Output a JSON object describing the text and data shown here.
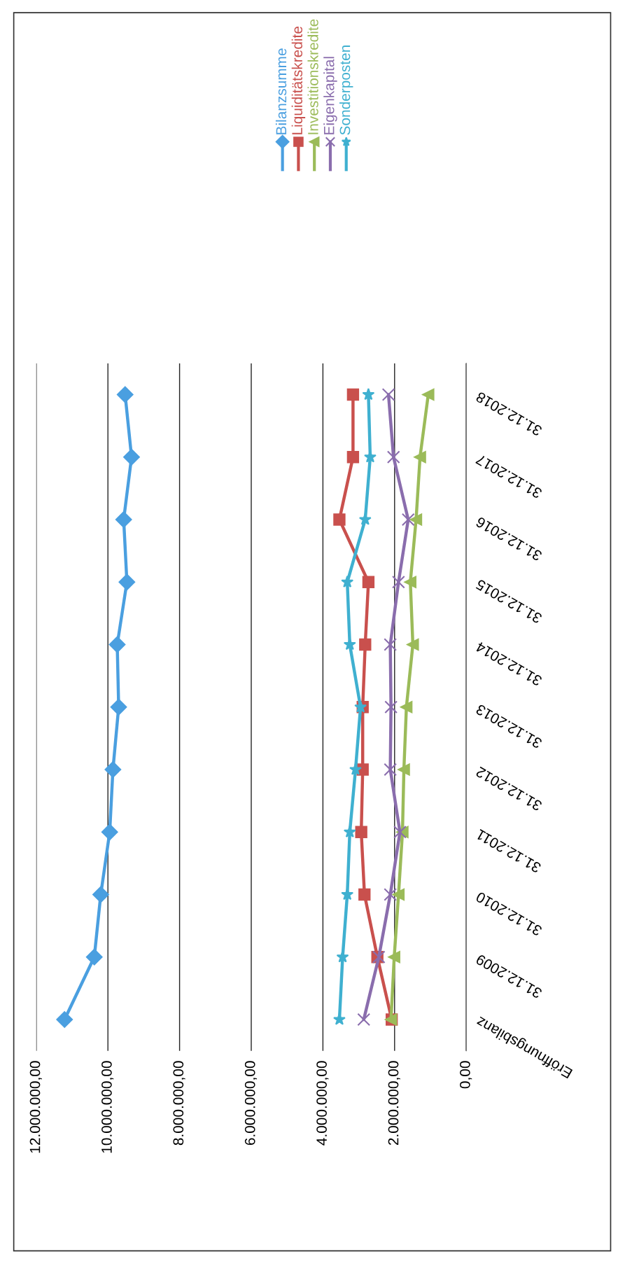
{
  "chart_data": {
    "type": "line",
    "orientation": "horizontal",
    "categories": [
      "31.12.2018",
      "31.12.2017",
      "31.12.2016",
      "31.12.2015",
      "31.12.2014",
      "31.12.2013",
      "31.12.2012",
      "31.12.2011",
      "31.12.2010",
      "31.12.2009",
      "Eröffnungsbilanz"
    ],
    "series": [
      {
        "name": "Bilanzsumme",
        "color": "#4a9fe0",
        "marker": "diamond",
        "values": [
          9520000,
          9340000,
          9560000,
          9470000,
          9740000,
          9700000,
          9860000,
          9950000,
          10200000,
          10380000,
          11210000
        ]
      },
      {
        "name": "Liquiditätskredite",
        "color": "#c9504d",
        "marker": "square",
        "values": [
          3160000,
          3160000,
          3540000,
          2730000,
          2820000,
          2890000,
          2890000,
          2930000,
          2840000,
          2480000,
          2080000
        ]
      },
      {
        "name": "Investitionskredite",
        "color": "#9bbb59",
        "marker": "triangle",
        "values": [
          1060000,
          1290000,
          1400000,
          1560000,
          1490000,
          1670000,
          1740000,
          1780000,
          1890000,
          2010000,
          2100000
        ]
      },
      {
        "name": "Eigenkapital",
        "color": "#8a6dad",
        "marker": "cross",
        "values": [
          2170000,
          2030000,
          1620000,
          1890000,
          2120000,
          2100000,
          2120000,
          1850000,
          2120000,
          2440000,
          2860000
        ]
      },
      {
        "name": "Sonderposten",
        "color": "#3fb0d0",
        "marker": "star",
        "values": [
          2730000,
          2680000,
          2820000,
          3320000,
          3250000,
          2950000,
          3090000,
          3250000,
          3320000,
          3450000,
          3540000
        ]
      }
    ],
    "xlim": [
      12000000,
      0
    ],
    "xticks": [
      {
        "value": 12000000,
        "label": "12.000.000,00"
      },
      {
        "value": 10000000,
        "label": "10.000.000,00"
      },
      {
        "value": 8000000,
        "label": "8.000.000,00"
      },
      {
        "value": 6000000,
        "label": "6.000.000,00"
      },
      {
        "value": 4000000,
        "label": "4.000.000,00"
      },
      {
        "value": 2000000,
        "label": "2.000.000,00"
      },
      {
        "value": 0,
        "label": "0,00"
      }
    ],
    "grid": "x",
    "legend": "top right"
  }
}
